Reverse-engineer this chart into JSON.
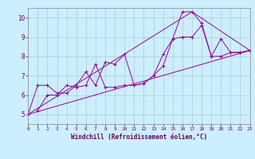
{
  "xlabel": "Windchill (Refroidissement éolien,°C)",
  "background_color": "#cceeff",
  "plot_bg_color": "#cceeff",
  "line_color": "#990099",
  "grid_color": "#aacccc",
  "xlim": [
    0,
    23
  ],
  "ylim": [
    4.5,
    10.5
  ],
  "xticks": [
    0,
    1,
    2,
    3,
    4,
    5,
    6,
    7,
    8,
    9,
    10,
    11,
    12,
    13,
    14,
    15,
    16,
    17,
    18,
    19,
    20,
    21,
    22,
    23
  ],
  "yticks": [
    5,
    6,
    7,
    8,
    9,
    10
  ],
  "series": [
    [
      0,
      5.0
    ],
    [
      1,
      6.5
    ],
    [
      2,
      6.5
    ],
    [
      3,
      6.1
    ],
    [
      4,
      6.1
    ],
    [
      5,
      6.5
    ],
    [
      6,
      7.2
    ],
    [
      7,
      6.5
    ],
    [
      8,
      7.7
    ],
    [
      9,
      7.6
    ],
    [
      10,
      8.1
    ],
    [
      11,
      6.5
    ],
    [
      12,
      6.6
    ],
    [
      13,
      7.0
    ],
    [
      14,
      8.1
    ],
    [
      15,
      8.9
    ],
    [
      16,
      10.3
    ],
    [
      17,
      10.3
    ],
    [
      18,
      9.7
    ],
    [
      19,
      8.0
    ],
    [
      20,
      8.9
    ],
    [
      21,
      8.2
    ],
    [
      22,
      8.2
    ],
    [
      23,
      8.3
    ]
  ],
  "line2": [
    [
      1,
      5.2
    ],
    [
      2,
      6.0
    ],
    [
      3,
      6.0
    ],
    [
      4,
      6.5
    ],
    [
      5,
      6.4
    ],
    [
      6,
      6.5
    ],
    [
      7,
      7.6
    ],
    [
      8,
      6.4
    ],
    [
      9,
      6.4
    ],
    [
      10,
      6.5
    ],
    [
      11,
      6.5
    ],
    [
      12,
      6.6
    ],
    [
      13,
      7.0
    ],
    [
      14,
      7.5
    ],
    [
      15,
      8.9
    ],
    [
      16,
      9.0
    ],
    [
      17,
      9.0
    ],
    [
      18,
      9.6
    ],
    [
      19,
      8.0
    ],
    [
      20,
      8.0
    ],
    [
      21,
      8.2
    ],
    [
      22,
      8.2
    ],
    [
      23,
      8.3
    ]
  ],
  "line3": [
    [
      0,
      5.0
    ],
    [
      23,
      8.3
    ]
  ],
  "line4": [
    [
      0,
      5.0
    ],
    [
      17,
      10.3
    ],
    [
      23,
      8.3
    ]
  ]
}
